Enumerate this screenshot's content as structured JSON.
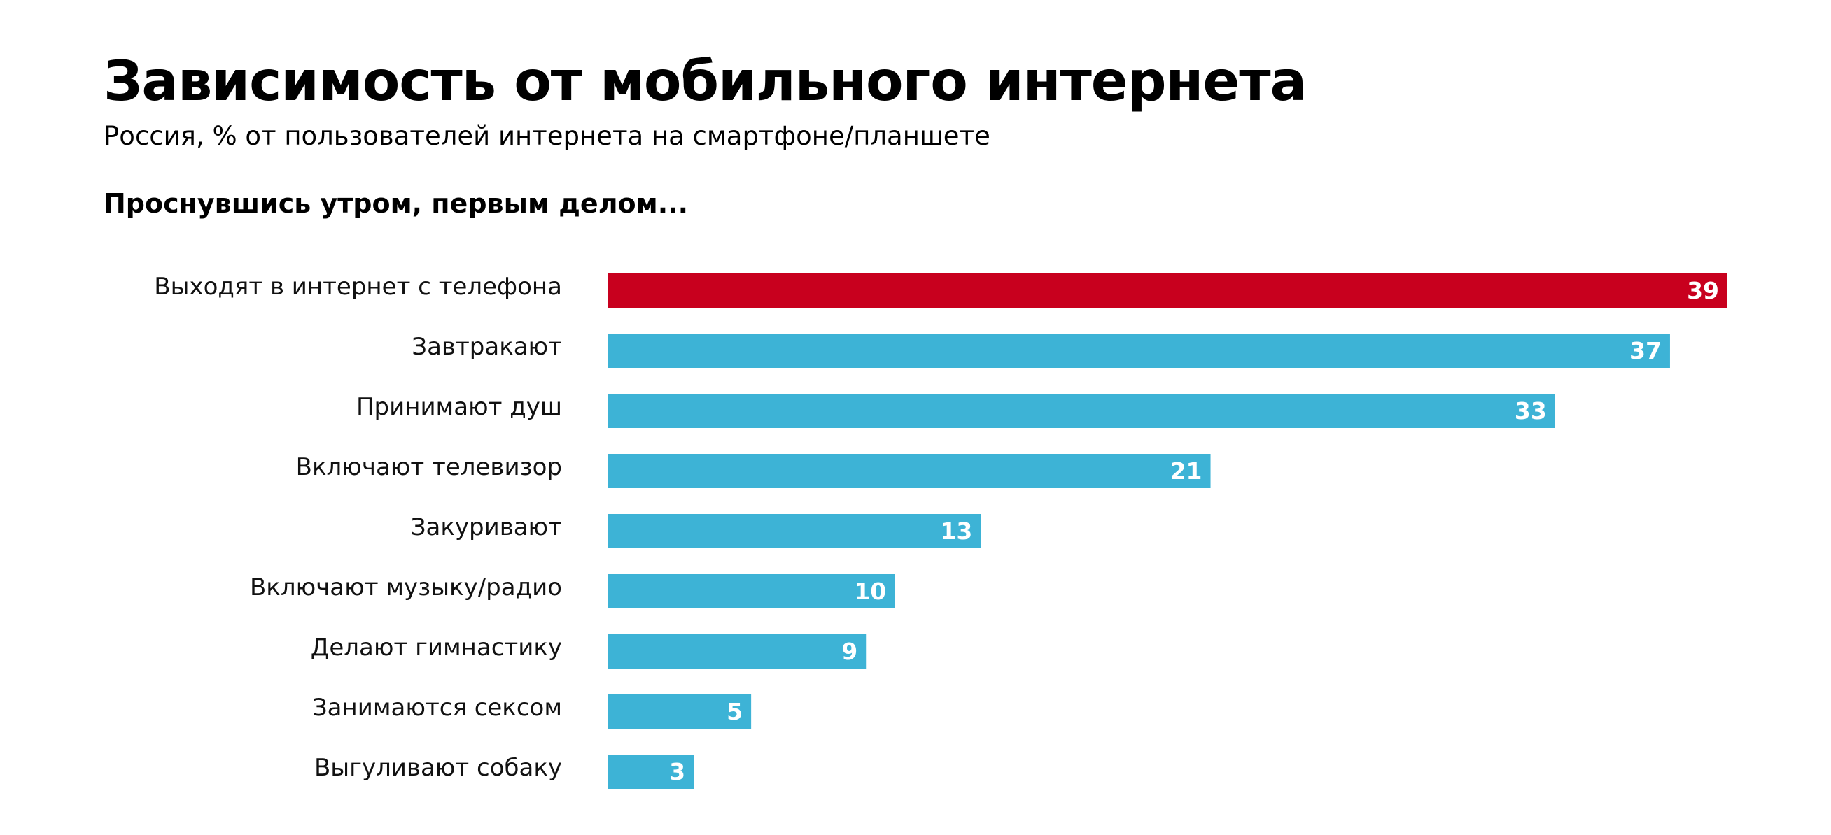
{
  "header": {
    "title": "Зависимость от мобильного интернета",
    "subtitle": "Россия, % от пользователей интернета на смартфоне/планшете",
    "section_heading": "Проснувшись утром, первым делом..."
  },
  "colors": {
    "highlight": "#c8001e",
    "bar": "#3db3d6",
    "value_text": "#ffffff"
  },
  "chart_data": {
    "type": "bar",
    "orientation": "horizontal",
    "title": "Зависимость от мобильного интернета",
    "subtitle": "Россия, % от пользователей интернета на смартфоне/планшете",
    "xlabel": "",
    "ylabel": "",
    "xlim": [
      0,
      39
    ],
    "grid": false,
    "legend": "none",
    "highlight_index": 0,
    "categories": [
      "Выходят в интернет с телефона",
      "Завтракают",
      "Принимают душ",
      "Включают телевизор",
      "Закуривают",
      "Включают музыку/радио",
      "Делают гимнастику",
      "Занимаются сексом",
      "Выгуливают собаку"
    ],
    "values": [
      39,
      37,
      33,
      21,
      13,
      10,
      9,
      5,
      3
    ]
  }
}
